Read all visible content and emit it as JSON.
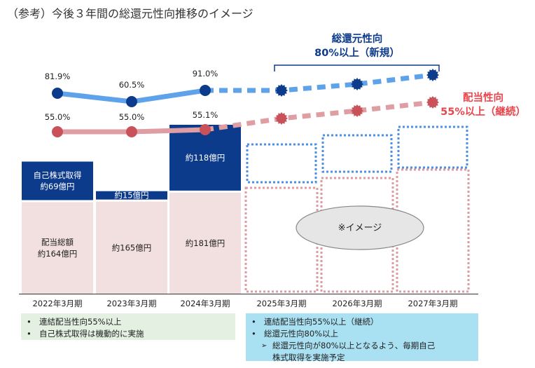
{
  "page_title": "（参考）今後３年間の総還元性向推移のイメージ",
  "chart_data": {
    "type": "bar",
    "title": "（参考）今後３年間の総還元性向推移のイメージ",
    "categories": [
      "2022年3月期",
      "2023年3月期",
      "2024年3月期",
      "2025年3月期",
      "2026年3月期",
      "2027年3月期"
    ],
    "series": [
      {
        "name": "配当総額",
        "unit": "億円",
        "values": [
          164,
          165,
          181,
          null,
          null,
          null
        ],
        "labels": [
          "配当総額\n約164億円",
          "約165億円",
          "約181億円",
          "",
          "",
          ""
        ],
        "color": "#f2dfe0"
      },
      {
        "name": "自己株式取得",
        "unit": "億円",
        "values": [
          69,
          15,
          118,
          null,
          null,
          null
        ],
        "labels": [
          "自己株式取得\n約69億円",
          "約15億円",
          "約118億円",
          "",
          "",
          ""
        ],
        "color": "#0d3b8c"
      }
    ],
    "lines": [
      {
        "name": "総還元性向",
        "values": [
          81.9,
          60.5,
          91.0
        ],
        "labels": [
          "81.9%",
          "60.5%",
          "91.0%"
        ],
        "color": "#5ea2ea",
        "marker": "#0d3b8c"
      },
      {
        "name": "配当性向",
        "values": [
          55.0,
          55.0,
          55.1
        ],
        "labels": [
          "55.0%",
          "55.0%",
          "55.1%"
        ],
        "color": "#df9ea3",
        "marker": "#c9525a"
      }
    ],
    "future_targets": [
      {
        "name": "総還元性向",
        "text": "総還元性向\n80%以上（新規）",
        "color": "#0d3b8c"
      },
      {
        "name": "配当性向",
        "text": "配当性向\n55%以上（継続）",
        "color": "#e8454c"
      }
    ],
    "image_label": "※イメージ"
  },
  "notes_past": [
    {
      "text": "連結配当性向55%以上",
      "level": 0
    },
    {
      "text": "自己株式取得は機動的に実施",
      "level": 0
    }
  ],
  "notes_future": [
    {
      "text": "連結配当性向55%以上（継続）",
      "level": 0
    },
    {
      "text": "総還元性向80%以上",
      "level": 0
    },
    {
      "text": "総還元性向が80%以上となるよう、毎期自己\n株式取得を実施予定",
      "level": 1
    }
  ],
  "bullet": "•",
  "sub_bullet": "➢"
}
